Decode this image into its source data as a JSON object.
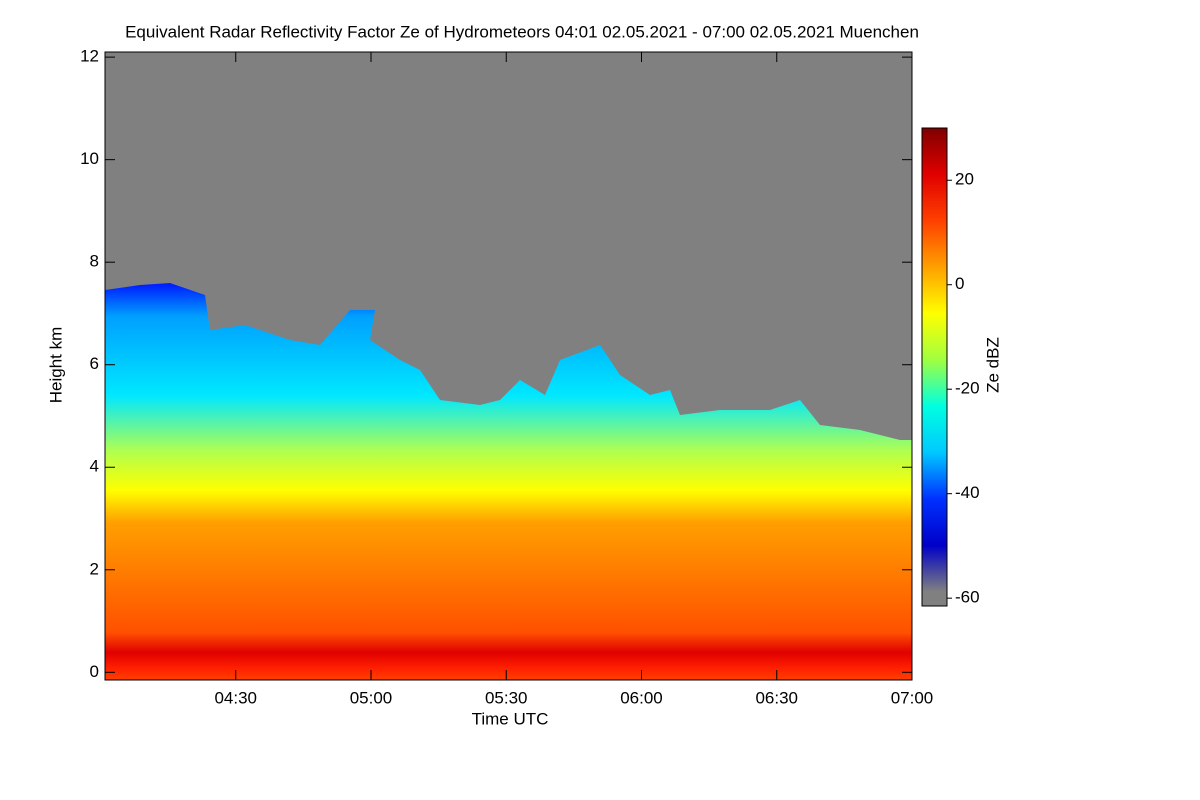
{
  "chart_data": {
    "type": "heatmap",
    "title": "Equivalent Radar Reflectivity Factor Ze of Hydrometeors   04:01 02.05.2021 - 07:00 02.05.2021 Muenchen",
    "x_label": "Time UTC",
    "y_label": "Height km",
    "colorbar_label": "Ze dBZ",
    "xlim": [
      "04:01",
      "07:00"
    ],
    "xticks": [
      "04:30",
      "05:00",
      "05:30",
      "06:00",
      "06:30",
      "07:00"
    ],
    "ylim": [
      -0.15,
      12.1
    ],
    "yticks": [
      0,
      2,
      4,
      6,
      8,
      10,
      12
    ],
    "clim": [
      -61.5,
      30
    ],
    "cticks": [
      -60,
      -40,
      -20,
      0,
      20
    ],
    "colormap": [
      "#808080",
      "#0000c8",
      "#0030ff",
      "#00c8ff",
      "#00ffe0",
      "#a0ff40",
      "#ffff00",
      "#ffa000",
      "#ff4000",
      "#e00000",
      "#800000"
    ]
  }
}
